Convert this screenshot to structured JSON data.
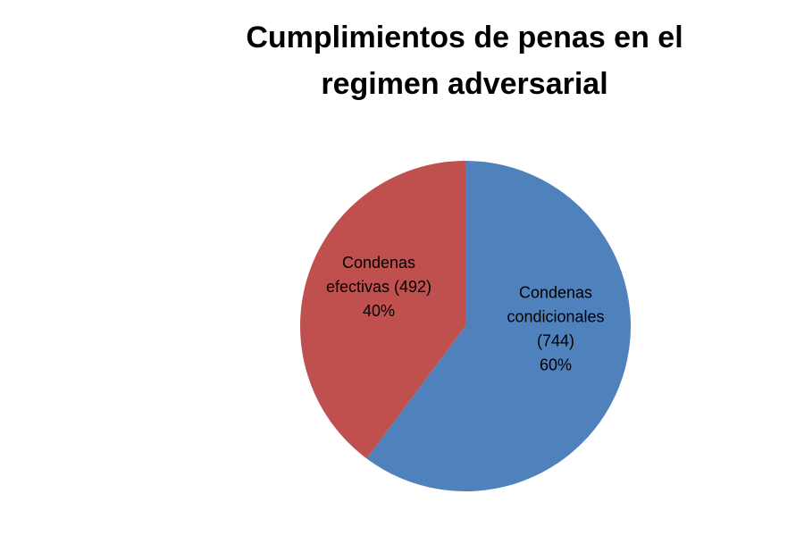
{
  "title_lines": [
    "Cumplimientos de penas en el",
    "regimen adversarial"
  ],
  "chart_data": {
    "type": "pie",
    "title": "Cumplimientos de penas en el regimen adversarial",
    "slices": [
      {
        "value": 744,
        "percent": 60,
        "label_lines": [
          "Condenas",
          "condicionales",
          "(744)",
          "60%"
        ],
        "color": "#4F81BD"
      },
      {
        "value": 492,
        "percent": 40,
        "label_lines": [
          "Condenas",
          "efectivas (492)",
          "40%"
        ],
        "color": "#C0504D"
      }
    ],
    "start": "12 o'clock",
    "direction": "clockwise"
  }
}
